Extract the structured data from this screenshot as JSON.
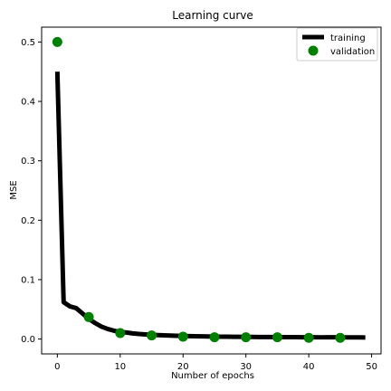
{
  "chart_data": {
    "type": "line",
    "title": "Learning curve",
    "xlabel": "Number of epochs",
    "ylabel": "MSE",
    "xlim": [
      -2.5,
      51.5
    ],
    "ylim": [
      -0.025,
      0.525
    ],
    "x_ticks": [
      0,
      10,
      20,
      30,
      40,
      50
    ],
    "y_ticks": [
      0.0,
      0.1,
      0.2,
      0.3,
      0.4,
      0.5
    ],
    "x_tick_labels": [
      "0",
      "10",
      "20",
      "30",
      "40",
      "50"
    ],
    "y_tick_labels": [
      "0.0",
      "0.1",
      "0.2",
      "0.3",
      "0.4",
      "0.5"
    ],
    "grid": false,
    "legend_position": "top-right",
    "series": [
      {
        "name": "training",
        "style": "line",
        "color": "#000000",
        "x": [
          0,
          1,
          2,
          3,
          4,
          5,
          6,
          7,
          8,
          9,
          10,
          11,
          12,
          13,
          14,
          15,
          16,
          17,
          18,
          19,
          20,
          21,
          22,
          23,
          24,
          25,
          26,
          27,
          28,
          29,
          30,
          31,
          32,
          33,
          34,
          35,
          36,
          37,
          38,
          39,
          40,
          41,
          42,
          43,
          44,
          45,
          46,
          47,
          48,
          49
        ],
        "y": [
          0.45,
          0.062,
          0.055,
          0.052,
          0.043,
          0.034,
          0.027,
          0.021,
          0.017,
          0.014,
          0.012,
          0.011,
          0.0095,
          0.0085,
          0.0078,
          0.0072,
          0.0066,
          0.0062,
          0.0058,
          0.0055,
          0.0052,
          0.0049,
          0.0047,
          0.0045,
          0.0043,
          0.0042,
          0.004,
          0.0039,
          0.0038,
          0.0037,
          0.0036,
          0.0035,
          0.0034,
          0.0033,
          0.0033,
          0.0032,
          0.0032,
          0.0031,
          0.0031,
          0.003,
          0.003,
          0.003,
          0.0029,
          0.0029,
          0.0029,
          0.0028,
          0.0028,
          0.0028,
          0.0028,
          0.0027
        ]
      },
      {
        "name": "validation",
        "style": "scatter",
        "color": "#008000",
        "x": [
          0,
          5,
          10,
          15,
          20,
          25,
          30,
          35,
          40,
          45
        ],
        "y": [
          0.5,
          0.037,
          0.01,
          0.006,
          0.004,
          0.003,
          0.003,
          0.003,
          0.002,
          0.002
        ]
      }
    ]
  }
}
